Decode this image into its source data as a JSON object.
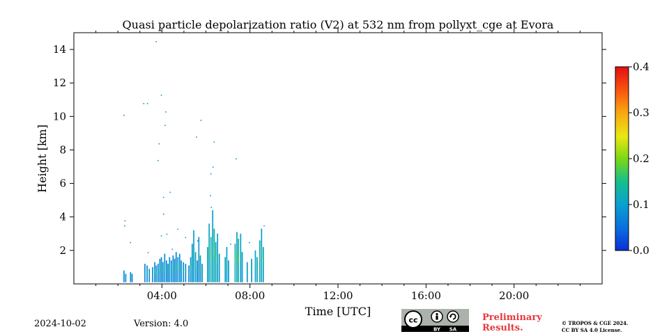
{
  "chart_data": {
    "type": "heatmap",
    "title": "Quasi particle depolarization ratio (V2) at 532 nm from pollyxt_cge at Evora",
    "xlabel": "Time [UTC]",
    "ylabel": "Height [km]",
    "xlim_hours": [
      0,
      24
    ],
    "ylim_km": [
      0,
      15
    ],
    "x_ticks": [
      {
        "value": 4,
        "label": "04:00"
      },
      {
        "value": 8,
        "label": "08:00"
      },
      {
        "value": 12,
        "label": "12:00"
      },
      {
        "value": 16,
        "label": "16:00"
      },
      {
        "value": 20,
        "label": "20:00"
      }
    ],
    "y_ticks": [
      {
        "value": 2,
        "label": "2"
      },
      {
        "value": 4,
        "label": "4"
      },
      {
        "value": 6,
        "label": "6"
      },
      {
        "value": 8,
        "label": "8"
      },
      {
        "value": 10,
        "label": "10"
      },
      {
        "value": 12,
        "label": "12"
      },
      {
        "value": 14,
        "label": "14"
      }
    ],
    "colorbar": {
      "range": [
        0.0,
        0.4
      ],
      "ticks": [
        {
          "value": 0.0,
          "label": "0.0"
        },
        {
          "value": 0.1,
          "label": "0.1"
        },
        {
          "value": 0.2,
          "label": "0.2"
        },
        {
          "value": 0.3,
          "label": "0.3"
        },
        {
          "value": 0.4,
          "label": "0.4"
        }
      ],
      "colors": [
        "#0a2ed6",
        "#0a6ee0",
        "#0aa0d0",
        "#18c08a",
        "#7cd814",
        "#e8e812",
        "#f8a810",
        "#f85010",
        "#e01010"
      ]
    },
    "columns": [
      {
        "t": 2.25,
        "top": 0.8,
        "v": 0.08
      },
      {
        "t": 2.33,
        "top": 0.6,
        "v": 0.08
      },
      {
        "t": 2.55,
        "top": 0.7,
        "v": 0.07
      },
      {
        "t": 2.62,
        "top": 0.6,
        "v": 0.08
      },
      {
        "t": 3.2,
        "top": 1.2,
        "v": 0.08
      },
      {
        "t": 3.3,
        "top": 1.1,
        "v": 0.08
      },
      {
        "t": 3.4,
        "top": 0.9,
        "v": 0.08
      },
      {
        "t": 3.55,
        "top": 1.0,
        "v": 0.08
      },
      {
        "t": 3.65,
        "top": 1.3,
        "v": 0.08
      },
      {
        "t": 3.72,
        "top": 1.1,
        "v": 0.08
      },
      {
        "t": 3.8,
        "top": 1.2,
        "v": 0.08
      },
      {
        "t": 3.88,
        "top": 1.5,
        "v": 0.08
      },
      {
        "t": 3.95,
        "top": 1.6,
        "v": 0.08
      },
      {
        "t": 4.02,
        "top": 1.3,
        "v": 0.08
      },
      {
        "t": 4.1,
        "top": 1.8,
        "v": 0.08
      },
      {
        "t": 4.18,
        "top": 1.4,
        "v": 0.08
      },
      {
        "t": 4.25,
        "top": 1.2,
        "v": 0.08
      },
      {
        "t": 4.32,
        "top": 1.6,
        "v": 0.08
      },
      {
        "t": 4.4,
        "top": 1.4,
        "v": 0.08
      },
      {
        "t": 4.48,
        "top": 1.7,
        "v": 0.08
      },
      {
        "t": 4.55,
        "top": 1.5,
        "v": 0.08
      },
      {
        "t": 4.62,
        "top": 1.9,
        "v": 0.08
      },
      {
        "t": 4.7,
        "top": 1.6,
        "v": 0.08
      },
      {
        "t": 4.78,
        "top": 1.8,
        "v": 0.09
      },
      {
        "t": 4.85,
        "top": 1.4,
        "v": 0.08
      },
      {
        "t": 4.95,
        "top": 1.3,
        "v": 0.08
      },
      {
        "t": 5.05,
        "top": 1.2,
        "v": 0.08
      },
      {
        "t": 5.2,
        "top": 1.1,
        "v": 0.08
      },
      {
        "t": 5.28,
        "top": 1.6,
        "v": 0.09
      },
      {
        "t": 5.35,
        "top": 2.4,
        "v": 0.09
      },
      {
        "t": 5.42,
        "top": 3.2,
        "v": 0.1
      },
      {
        "t": 5.5,
        "top": 1.9,
        "v": 0.09
      },
      {
        "t": 5.58,
        "top": 1.4,
        "v": 0.08
      },
      {
        "t": 5.65,
        "top": 2.8,
        "v": 0.09
      },
      {
        "t": 5.72,
        "top": 1.7,
        "v": 0.09
      },
      {
        "t": 5.8,
        "top": 1.2,
        "v": 0.08
      },
      {
        "t": 6.05,
        "top": 2.2,
        "v": 0.1
      },
      {
        "t": 6.12,
        "top": 3.6,
        "v": 0.11
      },
      {
        "t": 6.2,
        "top": 2.8,
        "v": 0.12
      },
      {
        "t": 6.28,
        "top": 4.4,
        "v": 0.1
      },
      {
        "t": 6.35,
        "top": 3.3,
        "v": 0.13
      },
      {
        "t": 6.42,
        "top": 2.5,
        "v": 0.11
      },
      {
        "t": 6.5,
        "top": 3.0,
        "v": 0.1
      },
      {
        "t": 6.58,
        "top": 1.8,
        "v": 0.09
      },
      {
        "t": 6.85,
        "top": 1.6,
        "v": 0.1
      },
      {
        "t": 6.92,
        "top": 2.2,
        "v": 0.1
      },
      {
        "t": 7.0,
        "top": 1.4,
        "v": 0.09
      },
      {
        "t": 7.3,
        "top": 2.4,
        "v": 0.12
      },
      {
        "t": 7.38,
        "top": 3.1,
        "v": 0.11
      },
      {
        "t": 7.45,
        "top": 2.7,
        "v": 0.13
      },
      {
        "t": 7.55,
        "top": 3.0,
        "v": 0.1
      },
      {
        "t": 7.62,
        "top": 1.9,
        "v": 0.09
      },
      {
        "t": 7.85,
        "top": 1.3,
        "v": 0.09
      },
      {
        "t": 8.05,
        "top": 1.5,
        "v": 0.09
      },
      {
        "t": 8.22,
        "top": 2.0,
        "v": 0.1
      },
      {
        "t": 8.3,
        "top": 1.6,
        "v": 0.11
      },
      {
        "t": 8.42,
        "top": 2.6,
        "v": 0.12
      },
      {
        "t": 8.5,
        "top": 3.3,
        "v": 0.1
      },
      {
        "t": 8.58,
        "top": 2.2,
        "v": 0.11
      }
    ],
    "specks": [
      {
        "t": 3.72,
        "h": 14.5
      },
      {
        "t": 3.95,
        "h": 11.3
      },
      {
        "t": 2.25,
        "h": 10.1
      },
      {
        "t": 3.15,
        "h": 10.8
      },
      {
        "t": 3.32,
        "h": 10.8
      },
      {
        "t": 4.15,
        "h": 10.3
      },
      {
        "t": 4.12,
        "h": 9.5
      },
      {
        "t": 5.75,
        "h": 9.8
      },
      {
        "t": 3.85,
        "h": 8.4
      },
      {
        "t": 5.55,
        "h": 8.8
      },
      {
        "t": 6.35,
        "h": 8.5
      },
      {
        "t": 3.8,
        "h": 7.4
      },
      {
        "t": 7.35,
        "h": 7.5
      },
      {
        "t": 6.3,
        "h": 7.0
      },
      {
        "t": 6.2,
        "h": 6.6
      },
      {
        "t": 6.18,
        "h": 5.3
      },
      {
        "t": 4.35,
        "h": 5.5
      },
      {
        "t": 4.05,
        "h": 5.2
      },
      {
        "t": 4.05,
        "h": 4.2
      },
      {
        "t": 2.3,
        "h": 3.8
      },
      {
        "t": 2.28,
        "h": 3.5
      },
      {
        "t": 2.55,
        "h": 2.5
      },
      {
        "t": 3.95,
        "h": 2.9
      },
      {
        "t": 4.2,
        "h": 3.0
      },
      {
        "t": 4.7,
        "h": 3.3
      },
      {
        "t": 5.05,
        "h": 2.8
      },
      {
        "t": 5.6,
        "h": 2.6
      },
      {
        "t": 7.1,
        "h": 2.4
      },
      {
        "t": 7.95,
        "h": 2.5
      },
      {
        "t": 8.62,
        "h": 3.5
      },
      {
        "t": 6.22,
        "h": 4.6
      },
      {
        "t": 3.35,
        "h": 1.9
      },
      {
        "t": 4.45,
        "h": 2.1
      }
    ]
  },
  "footer": {
    "date": "2024-10-02",
    "version": "Version: 4.0",
    "preliminary_line1": "Preliminary",
    "preliminary_line2": "Results.",
    "copyright_line1": "© TROPOS & CGE 2024.",
    "copyright_line2": "CC BY SA 4.0 License.",
    "license_badge": {
      "cc": "cc",
      "by": "BY",
      "sa": "SA"
    }
  }
}
